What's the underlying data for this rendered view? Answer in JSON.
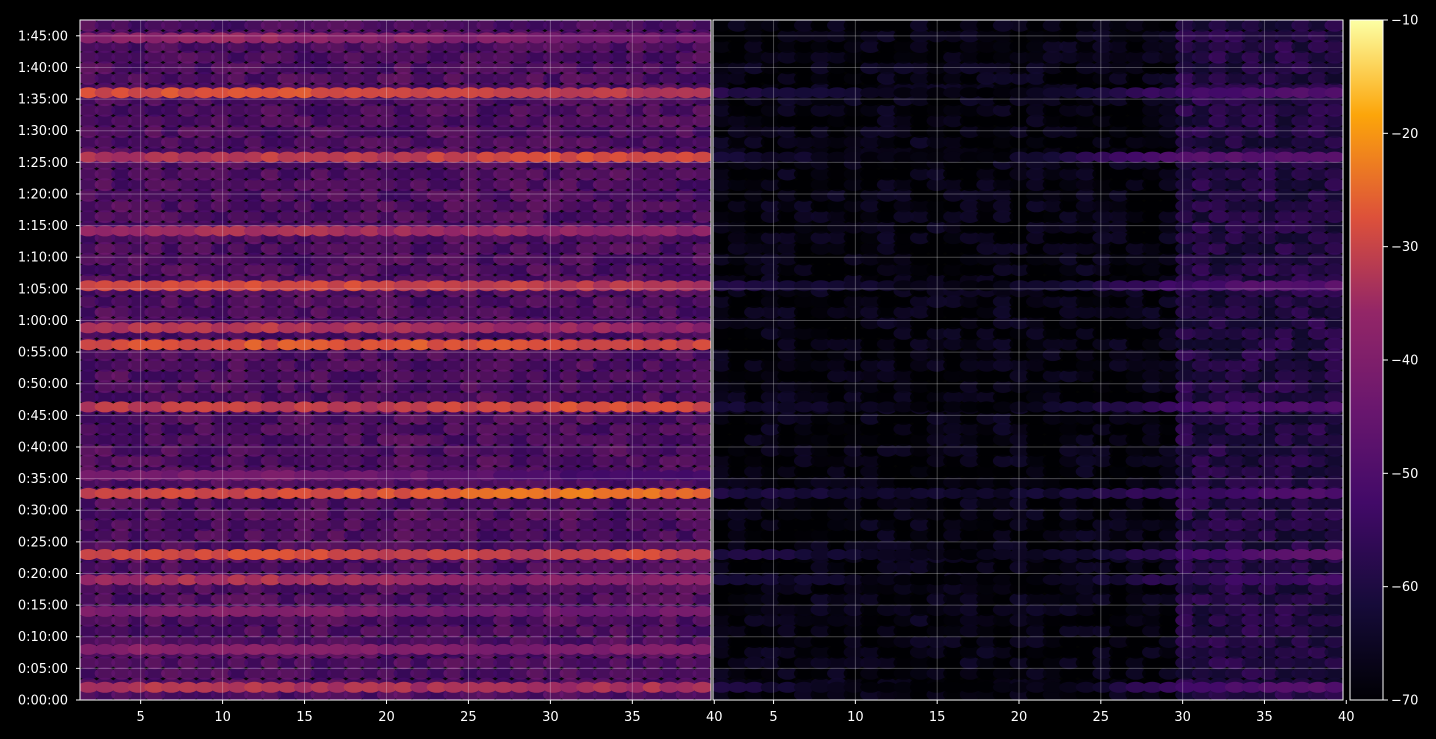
{
  "chart_data": [
    {
      "type": "heatmap",
      "panel": "left",
      "xlabel": "",
      "ylabel": "",
      "xlim": [
        1.3,
        39.8
      ],
      "x_ticks": [
        5,
        10,
        15,
        20,
        25,
        30,
        35,
        40
      ],
      "ylim": [
        0,
        6450
      ],
      "y_ticks": [
        "0:00:00",
        "0:05:00",
        "0:10:00",
        "0:15:00",
        "0:20:00",
        "0:25:00",
        "0:30:00",
        "0:35:00",
        "0:40:00",
        "0:45:00",
        "0:50:00",
        "0:55:00",
        "1:00:00",
        "1:05:00",
        "1:10:00",
        "1:15:00",
        "1:20:00",
        "1:25:00",
        "1:30:00",
        "1:35:00",
        "1:40:00",
        "1:45:00"
      ],
      "grid": true,
      "colormap": "inferno",
      "bands_db_by_x_bin": [
        {
          "t": 120,
          "values": [
            -33,
            -32,
            -32,
            -33,
            -34,
            -35,
            -34,
            -33
          ]
        },
        {
          "t": 480,
          "values": [
            -39,
            -38,
            -37,
            -38,
            -40,
            -41,
            -40,
            -38
          ]
        },
        {
          "t": 840,
          "values": [
            -41,
            -40,
            -39,
            -40,
            -42,
            -44,
            -44,
            -42
          ]
        },
        {
          "t": 1140,
          "values": [
            -35,
            -34,
            -33,
            -34,
            -36,
            -38,
            -39,
            -37
          ]
        },
        {
          "t": 1380,
          "values": [
            -30,
            -29,
            -28,
            -29,
            -31,
            -32,
            -28,
            -31
          ]
        },
        {
          "t": 1960,
          "values": [
            -30,
            -29,
            -29,
            -28,
            -27,
            -24,
            -22,
            -27
          ]
        },
        {
          "t": 2130,
          "values": [
            -42,
            -42,
            -41,
            -43,
            -45,
            -50,
            -53,
            -52
          ]
        },
        {
          "t": 2780,
          "values": [
            -32,
            -31,
            -31,
            -32,
            -30,
            -29,
            -28,
            -29
          ]
        },
        {
          "t": 3370,
          "values": [
            -29,
            -28,
            -27,
            -28,
            -27,
            -28,
            -29,
            -30
          ]
        },
        {
          "t": 3530,
          "values": [
            -33,
            -32,
            -32,
            -33,
            -34,
            -35,
            -36,
            -38
          ]
        },
        {
          "t": 3930,
          "values": [
            -30,
            -29,
            -28,
            -29,
            -30,
            -31,
            -32,
            -33
          ]
        },
        {
          "t": 4450,
          "values": [
            -35,
            -34,
            -33,
            -34,
            -35,
            -36,
            -37,
            -38
          ]
        },
        {
          "t": 5150,
          "values": [
            -33,
            -32,
            -31,
            -32,
            -30,
            -29,
            -28,
            -30
          ]
        },
        {
          "t": 5760,
          "values": [
            -29,
            -28,
            -27,
            -28,
            -29,
            -30,
            -32,
            -33
          ]
        },
        {
          "t": 6280,
          "values": [
            -38,
            -37,
            -36,
            -37,
            -39,
            -41,
            -43,
            -44
          ]
        }
      ]
    },
    {
      "type": "heatmap",
      "panel": "right",
      "xlabel": "",
      "ylabel": "",
      "xlim": [
        1.3,
        39.8
      ],
      "x_ticks": [
        5,
        10,
        15,
        20,
        25,
        30,
        35,
        40
      ],
      "ylim": [
        0,
        6450
      ],
      "grid": true,
      "colormap": "inferno",
      "bands_db_by_x_bin": [
        {
          "t": 120,
          "values": [
            -60,
            -64,
            -70,
            -70,
            -66,
            -55,
            -50,
            -49
          ]
        },
        {
          "t": 1140,
          "values": [
            -62,
            -64,
            -68,
            -70,
            -66,
            -58,
            -54,
            -52
          ]
        },
        {
          "t": 1380,
          "values": [
            -60,
            -62,
            -66,
            -68,
            -64,
            -56,
            -50,
            -47
          ]
        },
        {
          "t": 1960,
          "values": [
            -60,
            -62,
            -64,
            -64,
            -62,
            -56,
            -52,
            -50
          ]
        },
        {
          "t": 2780,
          "values": [
            -62,
            -64,
            -68,
            -70,
            -64,
            -54,
            -50,
            -49
          ]
        },
        {
          "t": 3930,
          "values": [
            -60,
            -62,
            -66,
            -68,
            -62,
            -54,
            -50,
            -48
          ]
        },
        {
          "t": 5150,
          "values": [
            -62,
            -65,
            -68,
            -70,
            -58,
            -50,
            -48,
            -47
          ]
        },
        {
          "t": 5760,
          "values": [
            -58,
            -62,
            -67,
            -70,
            -64,
            -55,
            -50,
            -49
          ]
        }
      ]
    }
  ],
  "colorbar": {
    "label": "",
    "range": [
      -70,
      -10
    ],
    "ticks": [
      "−70",
      "−60",
      "−50",
      "−40",
      "−30",
      "−20",
      "−10"
    ]
  }
}
